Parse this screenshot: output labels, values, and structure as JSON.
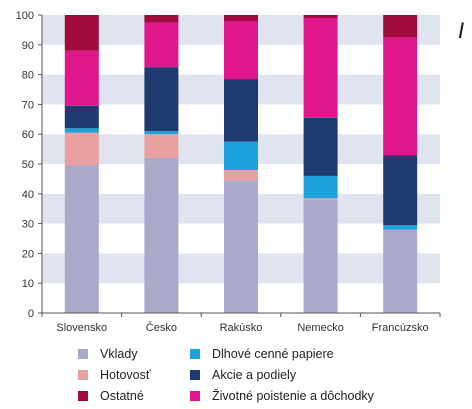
{
  "edge_text": "I",
  "chart_data": {
    "type": "bar",
    "stacked": true,
    "categories": [
      "Slovensko",
      "Česko",
      "Rakúsko",
      "Nemecko",
      "Francúzsko"
    ],
    "ylim": [
      0,
      100
    ],
    "yticks": [
      0,
      10,
      20,
      30,
      40,
      50,
      60,
      70,
      80,
      90,
      100
    ],
    "grid": "horizontal alternating bands",
    "legend_position": "bottom",
    "series": [
      {
        "name": "Vklady",
        "color": "#a9a9c9",
        "values": [
          49.5,
          52,
          44.5,
          38,
          28
        ]
      },
      {
        "name": "Hotovosť",
        "color": "#e8a0a0",
        "values": [
          11,
          8,
          3.5,
          0.5,
          0
        ]
      },
      {
        "name": "Dlhové cenné papiere",
        "color": "#1da1dc",
        "values": [
          1.5,
          1,
          9.5,
          7.5,
          1.5
        ]
      },
      {
        "name": "Akcie a podiely",
        "color": "#1d3b6e",
        "values": [
          7.5,
          21.5,
          21,
          19.5,
          23.5
        ]
      },
      {
        "name": "Životné poistenie a dôchodky",
        "color": "#e0168c",
        "values": [
          18.5,
          15,
          19.5,
          33.5,
          39.5
        ]
      },
      {
        "name": "Ostatné",
        "color": "#a00a3c",
        "values": [
          12,
          2.5,
          2,
          1,
          7.5
        ]
      }
    ]
  },
  "legend": {
    "order": [
      0,
      2,
      1,
      3,
      5,
      4
    ]
  }
}
